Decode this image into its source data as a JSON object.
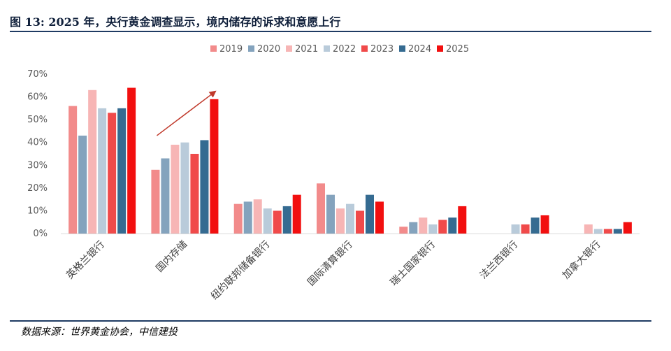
{
  "header": {
    "title": "图 13: 2025 年，央行黄金调查显示，境内储存的诉求和意愿上行"
  },
  "footer": {
    "source": "数据来源：世界黄金协会，中信建投"
  },
  "chart_data": {
    "type": "bar",
    "categories": [
      "英格兰银行",
      "国内存储",
      "纽约联邦储备银行",
      "国际清算银行",
      "瑞士国家银行",
      "法兰西银行",
      "加拿大银行"
    ],
    "series": [
      {
        "name": "2019",
        "color": "#F28B8B",
        "values": [
          56,
          28,
          13,
          22,
          3,
          0,
          0
        ]
      },
      {
        "name": "2020",
        "color": "#84A3BD",
        "values": [
          43,
          33,
          14,
          17,
          5,
          0,
          0
        ]
      },
      {
        "name": "2021",
        "color": "#F7B5B5",
        "values": [
          63,
          39,
          15,
          11,
          7,
          0,
          4
        ]
      },
      {
        "name": "2022",
        "color": "#B9CBDA",
        "values": [
          55,
          40,
          11,
          13,
          4,
          4,
          2
        ]
      },
      {
        "name": "2023",
        "color": "#F04A4A",
        "values": [
          53,
          35,
          10,
          10,
          6,
          4,
          2
        ]
      },
      {
        "name": "2024",
        "color": "#356B91",
        "values": [
          55,
          41,
          12,
          17,
          7,
          7,
          2
        ]
      },
      {
        "name": "2025",
        "color": "#F20F0F",
        "values": [
          64,
          59,
          17,
          14,
          12,
          8,
          5
        ]
      }
    ],
    "ylim": [
      0,
      70
    ],
    "yticks": [
      "0%",
      "10%",
      "20%",
      "30%",
      "40%",
      "50%",
      "60%",
      "70%"
    ],
    "legend_position": "top",
    "grid": false,
    "annotation": {
      "type": "arrow",
      "color": "#C0392B",
      "from": {
        "category": "国内存储",
        "value": 43
      },
      "to": {
        "category": "国内存储",
        "value": 62
      }
    }
  }
}
